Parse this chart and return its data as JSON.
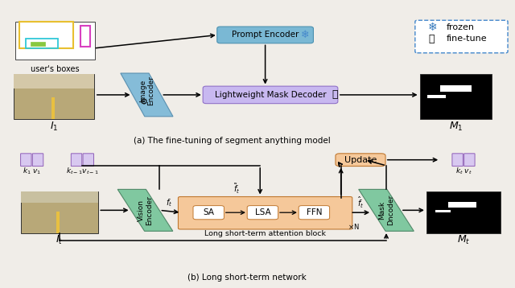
{
  "fig_width": 6.4,
  "fig_height": 3.58,
  "bg_color": "#f0ede8",
  "top_caption": "(a) The fine-tuning of segment anything model",
  "bot_caption": "(b) Long short-term network",
  "legend_frozen": "frozen",
  "legend_finetune": "fine-tune",
  "prompt_enc_color": "#7ab8d4",
  "prompt_enc_text": "Prompt Encoder",
  "img_enc_color": "#85bcd8",
  "img_enc_text": "Image\nEncoder",
  "mask_dec_color": "#c8b8f0",
  "mask_dec_text": "Lightweight Mask Decoder",
  "vision_enc_color": "#80c8a0",
  "vision_enc_text": "Vision\nEncoder",
  "attn_block_color": "#f5c89a",
  "sa_text": "SA",
  "lsa_text": "LSA",
  "ffn_text": "FFN",
  "mask_dec2_color": "#80c8a0",
  "mask_dec2_text": "Mask\nDncoder",
  "update_color": "#f5c89a",
  "update_text": "Update"
}
